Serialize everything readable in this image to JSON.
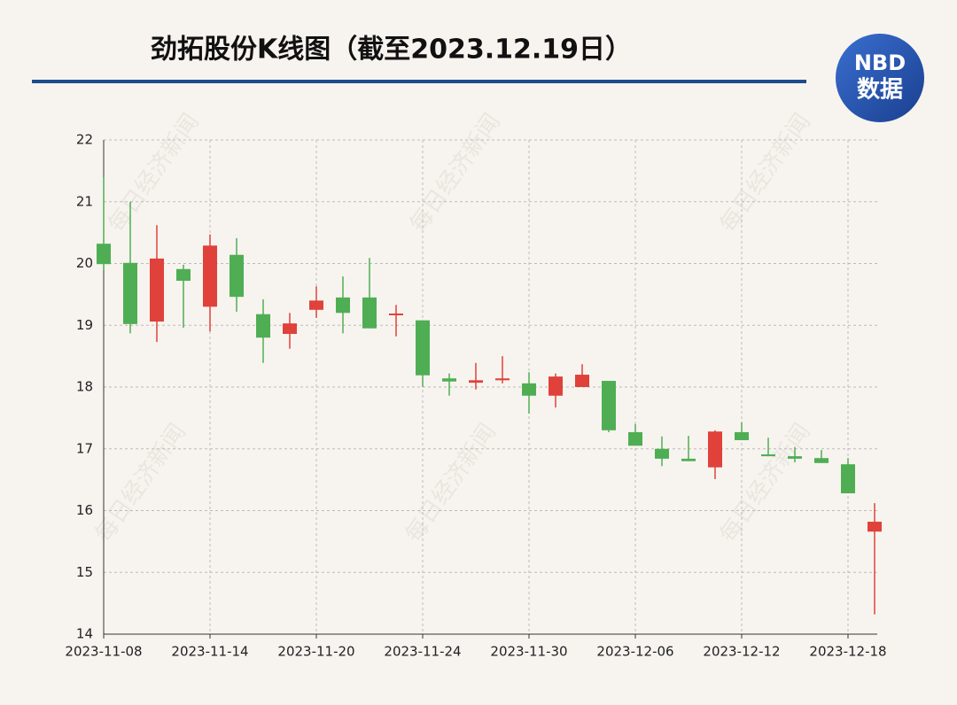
{
  "chart_data": {
    "type": "candlestick",
    "title": "劲拓股份K线图（截至2023.12.19日）",
    "logo_top": "NBD",
    "logo_bottom": "数据",
    "watermark": "每日经济新闻",
    "categories": [
      "2023-11-08",
      null,
      null,
      null,
      "2023-11-14",
      null,
      null,
      null,
      "2023-11-20",
      null,
      null,
      null,
      "2023-11-24",
      null,
      null,
      null,
      "2023-11-30",
      null,
      null,
      null,
      "2023-12-06",
      null,
      null,
      null,
      "2023-12-12",
      null,
      null,
      null,
      "2023-12-18",
      null
    ],
    "open": [
      20.32,
      20.01,
      19.06,
      19.91,
      19.3,
      20.14,
      19.18,
      18.86,
      19.25,
      19.45,
      19.45,
      19.17,
      19.08,
      18.14,
      18.07,
      18.11,
      18.06,
      17.86,
      18.0,
      18.1,
      17.27,
      17.0,
      16.84,
      16.7,
      17.27,
      16.91,
      16.88,
      16.85,
      16.75,
      15.66
    ],
    "close": [
      19.99,
      19.02,
      20.08,
      19.72,
      20.29,
      19.46,
      18.8,
      19.03,
      19.4,
      19.2,
      18.95,
      19.19,
      18.19,
      18.09,
      18.11,
      18.14,
      17.86,
      18.17,
      18.2,
      17.3,
      17.05,
      16.84,
      16.8,
      17.28,
      17.14,
      16.88,
      16.84,
      16.77,
      16.28,
      15.82
    ],
    "high": [
      21.4,
      21.0,
      20.62,
      19.98,
      20.47,
      20.41,
      19.42,
      19.2,
      19.63,
      19.79,
      20.09,
      19.33,
      19.08,
      18.22,
      18.39,
      18.5,
      18.24,
      18.22,
      18.37,
      18.1,
      17.4,
      17.2,
      17.21,
      17.3,
      17.43,
      17.18,
      17.03,
      16.98,
      16.85,
      16.12
    ],
    "low": [
      19.89,
      18.87,
      18.73,
      18.96,
      18.9,
      19.22,
      18.39,
      18.62,
      19.12,
      18.87,
      18.95,
      18.82,
      18.0,
      17.86,
      17.96,
      18.06,
      17.57,
      17.67,
      18.0,
      17.27,
      17.05,
      16.72,
      16.8,
      16.51,
      17.14,
      16.88,
      16.78,
      16.77,
      16.28,
      14.32
    ],
    "up_color": "#e0413a",
    "down_color": "#4fae54",
    "ylim": [
      14,
      22
    ],
    "yticks": [
      14,
      15,
      16,
      17,
      18,
      19,
      20,
      21,
      22
    ],
    "grid": true
  }
}
